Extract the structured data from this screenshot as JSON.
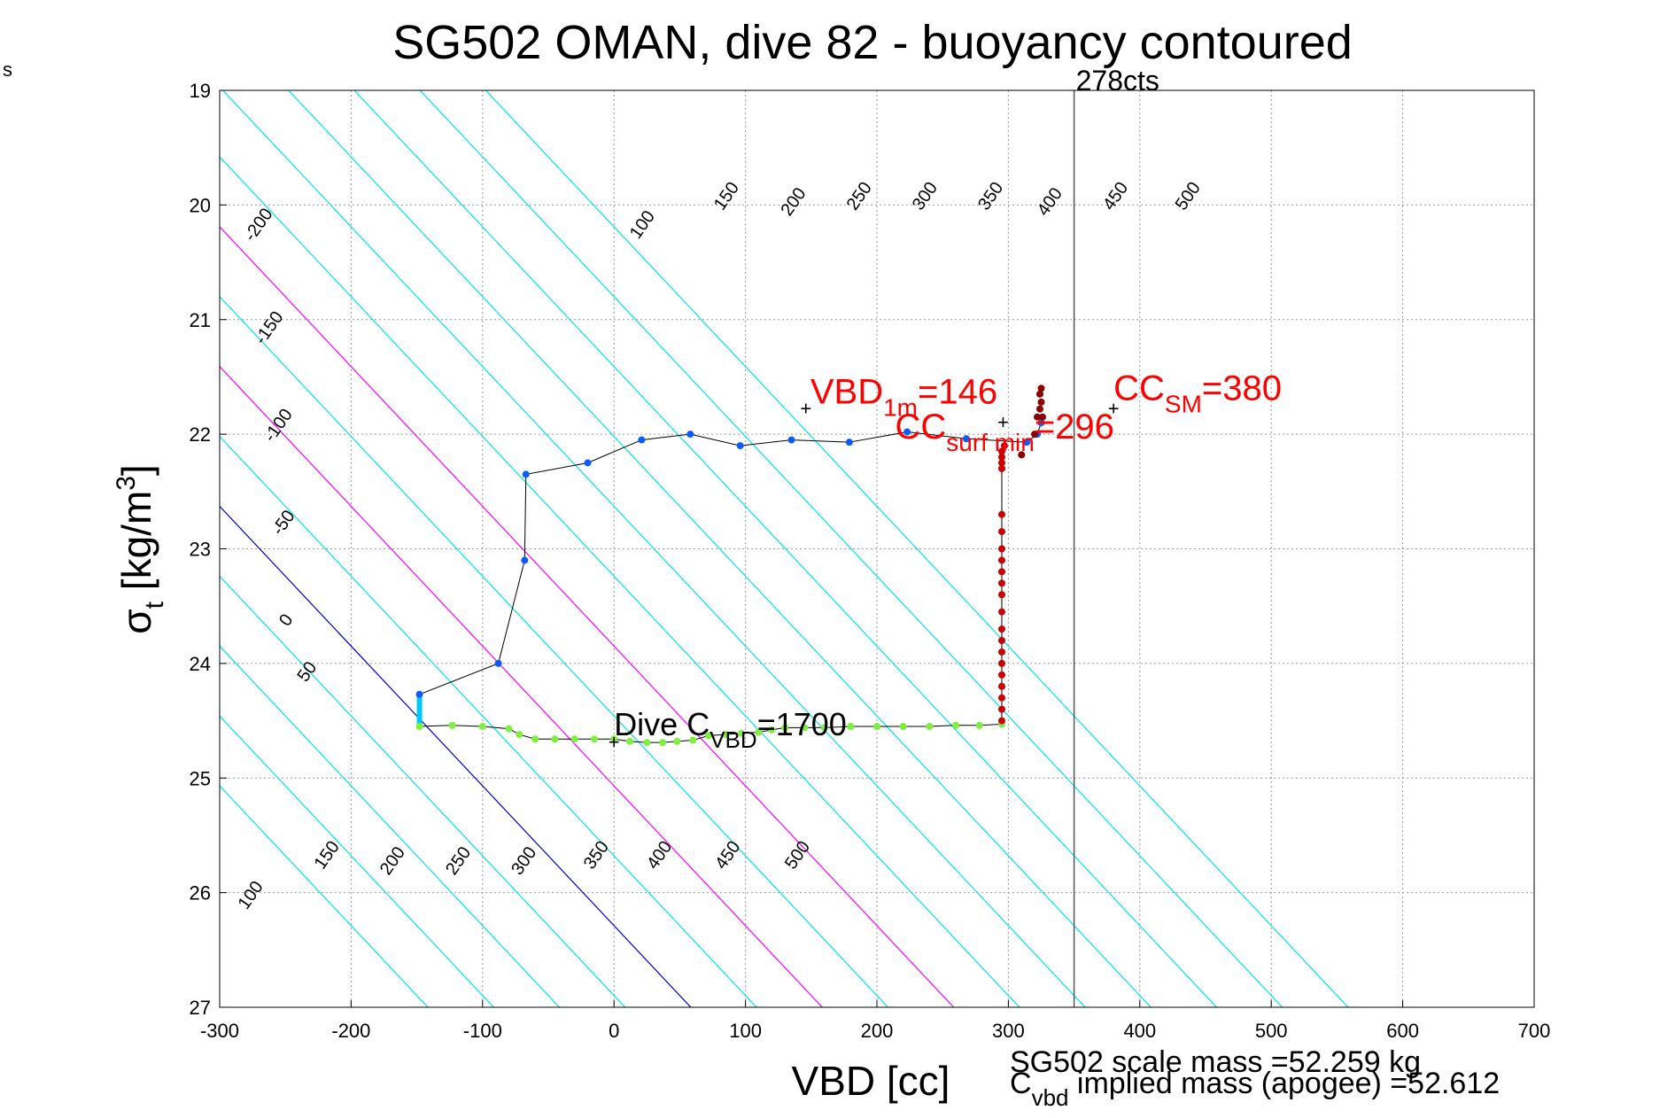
{
  "corner_text": "s",
  "chart_data": {
    "type": "scatter",
    "title": "SG502 OMAN, dive 82 - buoyancy contoured",
    "xlabel": "VBD [cc]",
    "ylabel_main": "σ",
    "ylabel_sub": "t",
    "ylabel_units_pre": " [kg/m",
    "ylabel_units_sup": "3",
    "ylabel_units_post": "]",
    "xlim": [
      -300,
      700
    ],
    "ylim": [
      19,
      27
    ],
    "y_reversed": true,
    "grid": true,
    "x_ticks": [
      "-300",
      "-200",
      "-100",
      "0",
      "100",
      "200",
      "300",
      "400",
      "500",
      "600",
      "700"
    ],
    "y_ticks": [
      "19",
      "20",
      "21",
      "22",
      "23",
      "24",
      "25",
      "26",
      "27"
    ],
    "contours": {
      "slope_cc_per_sigma": 82,
      "zero_anchor": {
        "vbd": -245,
        "sigma": 23.3
      },
      "levels": [
        -200,
        -150,
        -100,
        -50,
        0,
        50,
        100,
        150,
        200,
        250,
        300,
        350,
        400,
        450,
        500
      ],
      "colors": {
        "default": "#00e5ee",
        "zero": "#0000cc",
        "highlight": "#ff00ff"
      },
      "highlight_levels": [
        100,
        200
      ],
      "top_labels": [
        {
          "text": "-200",
          "vbd": -267,
          "sigma": 20.2
        },
        {
          "text": "-150",
          "vbd": -259,
          "sigma": 21.1
        },
        {
          "text": "-100",
          "vbd": -252,
          "sigma": 21.95
        },
        {
          "text": "-50",
          "vbd": -248,
          "sigma": 22.8
        },
        {
          "text": "0",
          "vbd": -246,
          "sigma": 23.65
        },
        {
          "text": "100",
          "vbd": 25,
          "sigma": 20.2
        },
        {
          "text": "150",
          "vbd": 89,
          "sigma": 19.95
        },
        {
          "text": "200",
          "vbd": 140,
          "sigma": 20.0
        },
        {
          "text": "250",
          "vbd": 190,
          "sigma": 19.95
        },
        {
          "text": "300",
          "vbd": 240,
          "sigma": 19.95
        },
        {
          "text": "350",
          "vbd": 290,
          "sigma": 19.95
        },
        {
          "text": "400",
          "vbd": 335,
          "sigma": 20.0
        },
        {
          "text": "450",
          "vbd": 385,
          "sigma": 19.95
        },
        {
          "text": "500",
          "vbd": 440,
          "sigma": 19.95
        }
      ],
      "bottom_labels": [
        {
          "text": "50",
          "vbd": -230,
          "sigma": 24.1
        },
        {
          "text": "100",
          "vbd": -273,
          "sigma": 26.05
        },
        {
          "text": "150",
          "vbd": -215,
          "sigma": 25.7
        },
        {
          "text": "200",
          "vbd": -165,
          "sigma": 25.75
        },
        {
          "text": "250",
          "vbd": -115,
          "sigma": 25.75
        },
        {
          "text": "300",
          "vbd": -65,
          "sigma": 25.75
        },
        {
          "text": "350",
          "vbd": -10,
          "sigma": 25.7
        },
        {
          "text": "400",
          "vbd": 38,
          "sigma": 25.7
        },
        {
          "text": "450",
          "vbd": 90,
          "sigma": 25.7
        },
        {
          "text": "500",
          "vbd": 143,
          "sigma": 25.7
        }
      ]
    },
    "vertical_line": {
      "vbd": 350,
      "label": "278cts"
    },
    "series": [
      {
        "name": "climb",
        "color": "#0a5cff",
        "points": [
          [
            -148,
            24.27
          ],
          [
            -88,
            24.0
          ],
          [
            -68,
            23.1
          ],
          [
            -67,
            22.35
          ],
          [
            -20,
            22.25
          ],
          [
            21,
            22.05
          ],
          [
            58,
            22.0
          ],
          [
            96,
            22.1
          ],
          [
            135,
            22.05
          ],
          [
            179,
            22.07
          ],
          [
            223,
            21.98
          ],
          [
            268,
            22.04
          ],
          [
            314,
            22.07
          ],
          [
            322,
            22.0
          ],
          [
            325,
            21.9
          ]
        ]
      },
      {
        "name": "descent_bottom",
        "color": "#7cf03c",
        "points": [
          [
            -148,
            24.55
          ],
          [
            -123,
            24.54
          ],
          [
            -100,
            24.55
          ],
          [
            -80,
            24.57
          ],
          [
            -72,
            24.62
          ],
          [
            -60,
            24.66
          ],
          [
            -45,
            24.66
          ],
          [
            -30,
            24.66
          ],
          [
            -15,
            24.66
          ],
          [
            0,
            24.66
          ],
          [
            12,
            24.68
          ],
          [
            25,
            24.69
          ],
          [
            37,
            24.69
          ],
          [
            48,
            24.68
          ],
          [
            60,
            24.67
          ],
          [
            72,
            24.63
          ],
          [
            85,
            24.62
          ],
          [
            97,
            24.61
          ],
          [
            110,
            24.6
          ],
          [
            120,
            24.58
          ],
          [
            130,
            24.56
          ],
          [
            145,
            24.56
          ],
          [
            160,
            24.56
          ],
          [
            180,
            24.55
          ],
          [
            200,
            24.55
          ],
          [
            220,
            24.55
          ],
          [
            240,
            24.55
          ],
          [
            260,
            24.54
          ],
          [
            278,
            24.54
          ],
          [
            295,
            24.53
          ]
        ]
      },
      {
        "name": "descent_vertical",
        "color": "#cc0000",
        "points": [
          [
            295,
            24.5
          ],
          [
            295,
            24.4
          ],
          [
            295,
            24.3
          ],
          [
            295,
            24.2
          ],
          [
            295,
            24.1
          ],
          [
            295,
            24.0
          ],
          [
            295,
            23.9
          ],
          [
            295,
            23.8
          ],
          [
            295,
            23.7
          ],
          [
            295,
            23.55
          ],
          [
            295,
            23.4
          ],
          [
            295,
            23.3
          ],
          [
            295,
            23.2
          ],
          [
            295,
            23.1
          ],
          [
            295,
            23.0
          ],
          [
            295,
            22.85
          ],
          [
            295,
            22.7
          ],
          [
            295,
            22.3
          ],
          [
            295,
            22.25
          ],
          [
            295,
            22.2
          ],
          [
            295,
            22.15
          ],
          [
            297,
            22.1
          ]
        ]
      },
      {
        "name": "surface",
        "color": "#8b0000",
        "points": [
          [
            310,
            22.18
          ],
          [
            320,
            22.0
          ],
          [
            322,
            21.85
          ],
          [
            324,
            21.78
          ],
          [
            325,
            21.72
          ],
          [
            324,
            21.65
          ],
          [
            325,
            21.6
          ],
          [
            326,
            21.85
          ]
        ]
      }
    ],
    "annotations": [
      {
        "name": "vbd-1m",
        "color": "#ff0000",
        "marker_vbd": 146,
        "marker_sigma": 21.78,
        "main": "VBD",
        "sub": "1m",
        "tail": "=146"
      },
      {
        "name": "cc-sm",
        "color": "#ff0000",
        "marker_vbd": 380,
        "marker_sigma": 21.78,
        "main": "CC",
        "sub": "SM",
        "tail": "=380"
      },
      {
        "name": "cc-surf-min",
        "color": "#ff0000",
        "marker_vbd": 296,
        "marker_sigma": 21.9,
        "main": "CC",
        "sub": "surf min",
        "tail": "=296"
      },
      {
        "name": "dive-cvbd",
        "color": "#000000",
        "marker_vbd": 0,
        "marker_sigma": 24.69,
        "main": "Dive C",
        "sub": "VBD",
        "tail": "=1700"
      }
    ],
    "footer": {
      "scale_mass": "SG502 scale mass =52.259 kg",
      "implied_main": "C",
      "implied_sub": "vbd",
      "implied_tail": " implied mass (apogee) =52.612"
    }
  }
}
